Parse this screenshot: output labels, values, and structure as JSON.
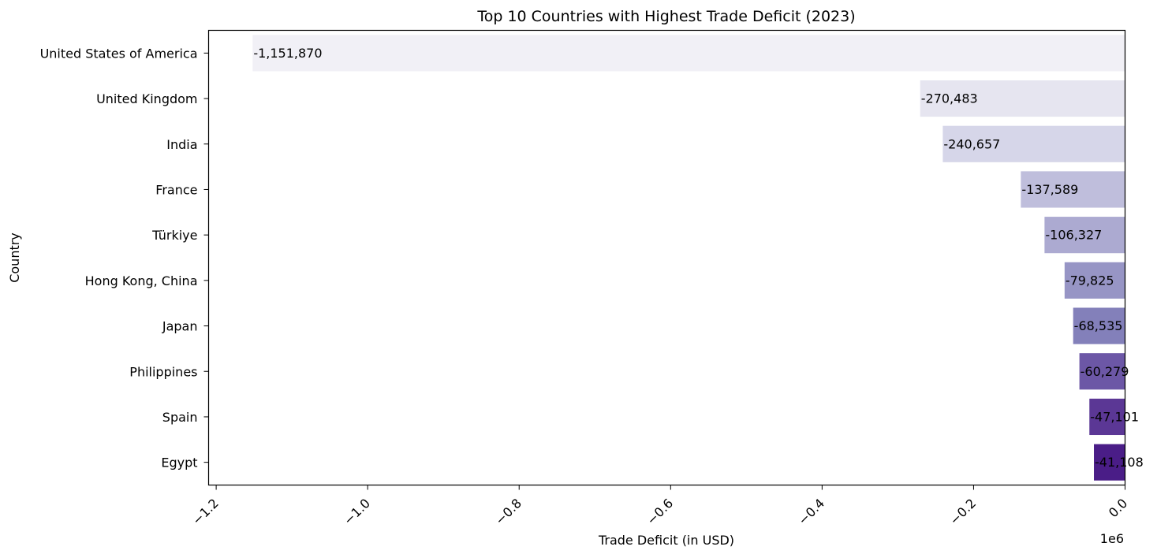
{
  "chart_data": {
    "type": "bar",
    "orientation": "horizontal",
    "title": "Top 10 Countries with Highest Trade Deficit (2023)",
    "xlabel": "Trade Deficit (in USD)",
    "ylabel": "Country",
    "x_offset_label": "1e6",
    "xlim": [
      -1.21,
      0.0
    ],
    "x_ticks": [
      -1.2,
      -1.0,
      -0.8,
      -0.6,
      -0.4,
      -0.2,
      0.0
    ],
    "x_tick_labels": [
      "−1.2",
      "−1.0",
      "−0.8",
      "−0.6",
      "−0.4",
      "−0.2",
      "0.0"
    ],
    "grid": false,
    "categories": [
      "United States of America",
      "United Kingdom",
      "India",
      "France",
      "Türkiye",
      "Hong Kong, China",
      "Japan",
      "Philippines",
      "Spain",
      "Egypt"
    ],
    "values": [
      -1151870,
      -270483,
      -240657,
      -137589,
      -106327,
      -79825,
      -68535,
      -60279,
      -47101,
      -41108
    ],
    "value_labels": [
      "-1,151,870",
      "-270,483",
      "-240,657",
      "-137,589",
      "-106,327",
      "-79,825",
      "-68,535",
      "-60,279",
      "-47,101",
      "-41,108"
    ],
    "colors": [
      "#f1f0f6",
      "#e6e5f0",
      "#d6d6e9",
      "#bfbedc",
      "#acaad1",
      "#9795c5",
      "#8380ba",
      "#6c57a6",
      "#5b3795",
      "#4a1d87"
    ]
  }
}
